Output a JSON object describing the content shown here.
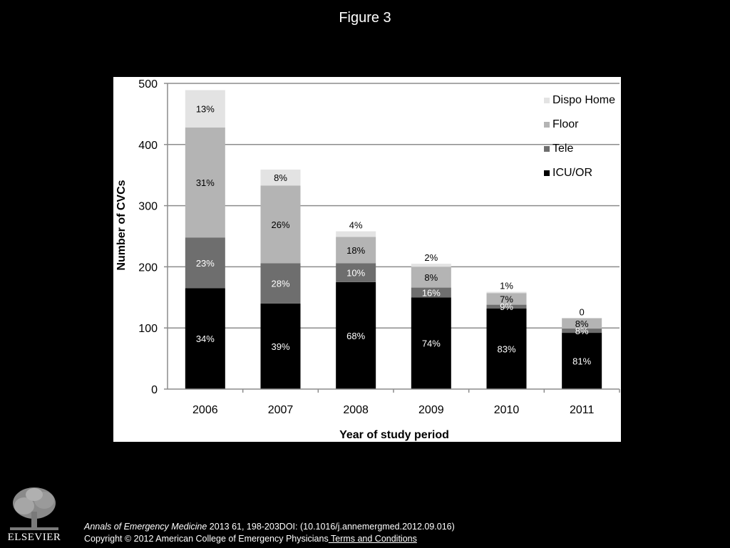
{
  "slide": {
    "title": "Figure 3",
    "citation_journal": "Annals of Emergency Medicine",
    "citation_rest": " 2013 61, 198-203DOI: (10.1016/j.annemergmed.2012.09.016)",
    "copyright": "Copyright © 2012 American College of Emergency Physicians",
    "terms_link": " Terms and Conditions",
    "publisher_logo_text": "ELSEVIER",
    "publisher_logo_icon": "elsevier-tree-icon"
  },
  "chart_data": {
    "type": "bar",
    "stacked": true,
    "categories": [
      "2006",
      "2007",
      "2008",
      "2009",
      "2010",
      "2011"
    ],
    "xlabel": "Year of study period",
    "ylabel": "Number of CVCs",
    "ylim": [
      0,
      500
    ],
    "yticks": [
      "0",
      "100",
      "200",
      "300",
      "400",
      "500"
    ],
    "grid": true,
    "legend_position": "top-right",
    "series": [
      {
        "name": "ICU/OR",
        "color": "#000000",
        "label_color": "#ffffff",
        "values": [
          165,
          140,
          175,
          150,
          132,
          92
        ],
        "labels": [
          "34%",
          "39%",
          "68%",
          "74%",
          "83%",
          "81%"
        ]
      },
      {
        "name": "Tele",
        "color": "#6e6e6e",
        "label_color": "#ffffff",
        "values": [
          83,
          66,
          31,
          16,
          6,
          7
        ],
        "labels": [
          "23%",
          "28%",
          "10%",
          "16%",
          "9%",
          "8%"
        ]
      },
      {
        "name": "Floor",
        "color": "#b4b4b4",
        "label_color": "#000000",
        "values": [
          180,
          127,
          43,
          34,
          19,
          17
        ],
        "labels": [
          "31%",
          "26%",
          "18%",
          "8%",
          "7%",
          "8%"
        ]
      },
      {
        "name": "Dispo Home",
        "color": "#e3e3e3",
        "label_color": "#000000",
        "values": [
          61,
          26,
          9,
          5,
          2,
          0
        ],
        "labels": [
          "13%",
          "8%",
          "4%",
          "2%",
          "1%",
          "0"
        ]
      }
    ]
  }
}
